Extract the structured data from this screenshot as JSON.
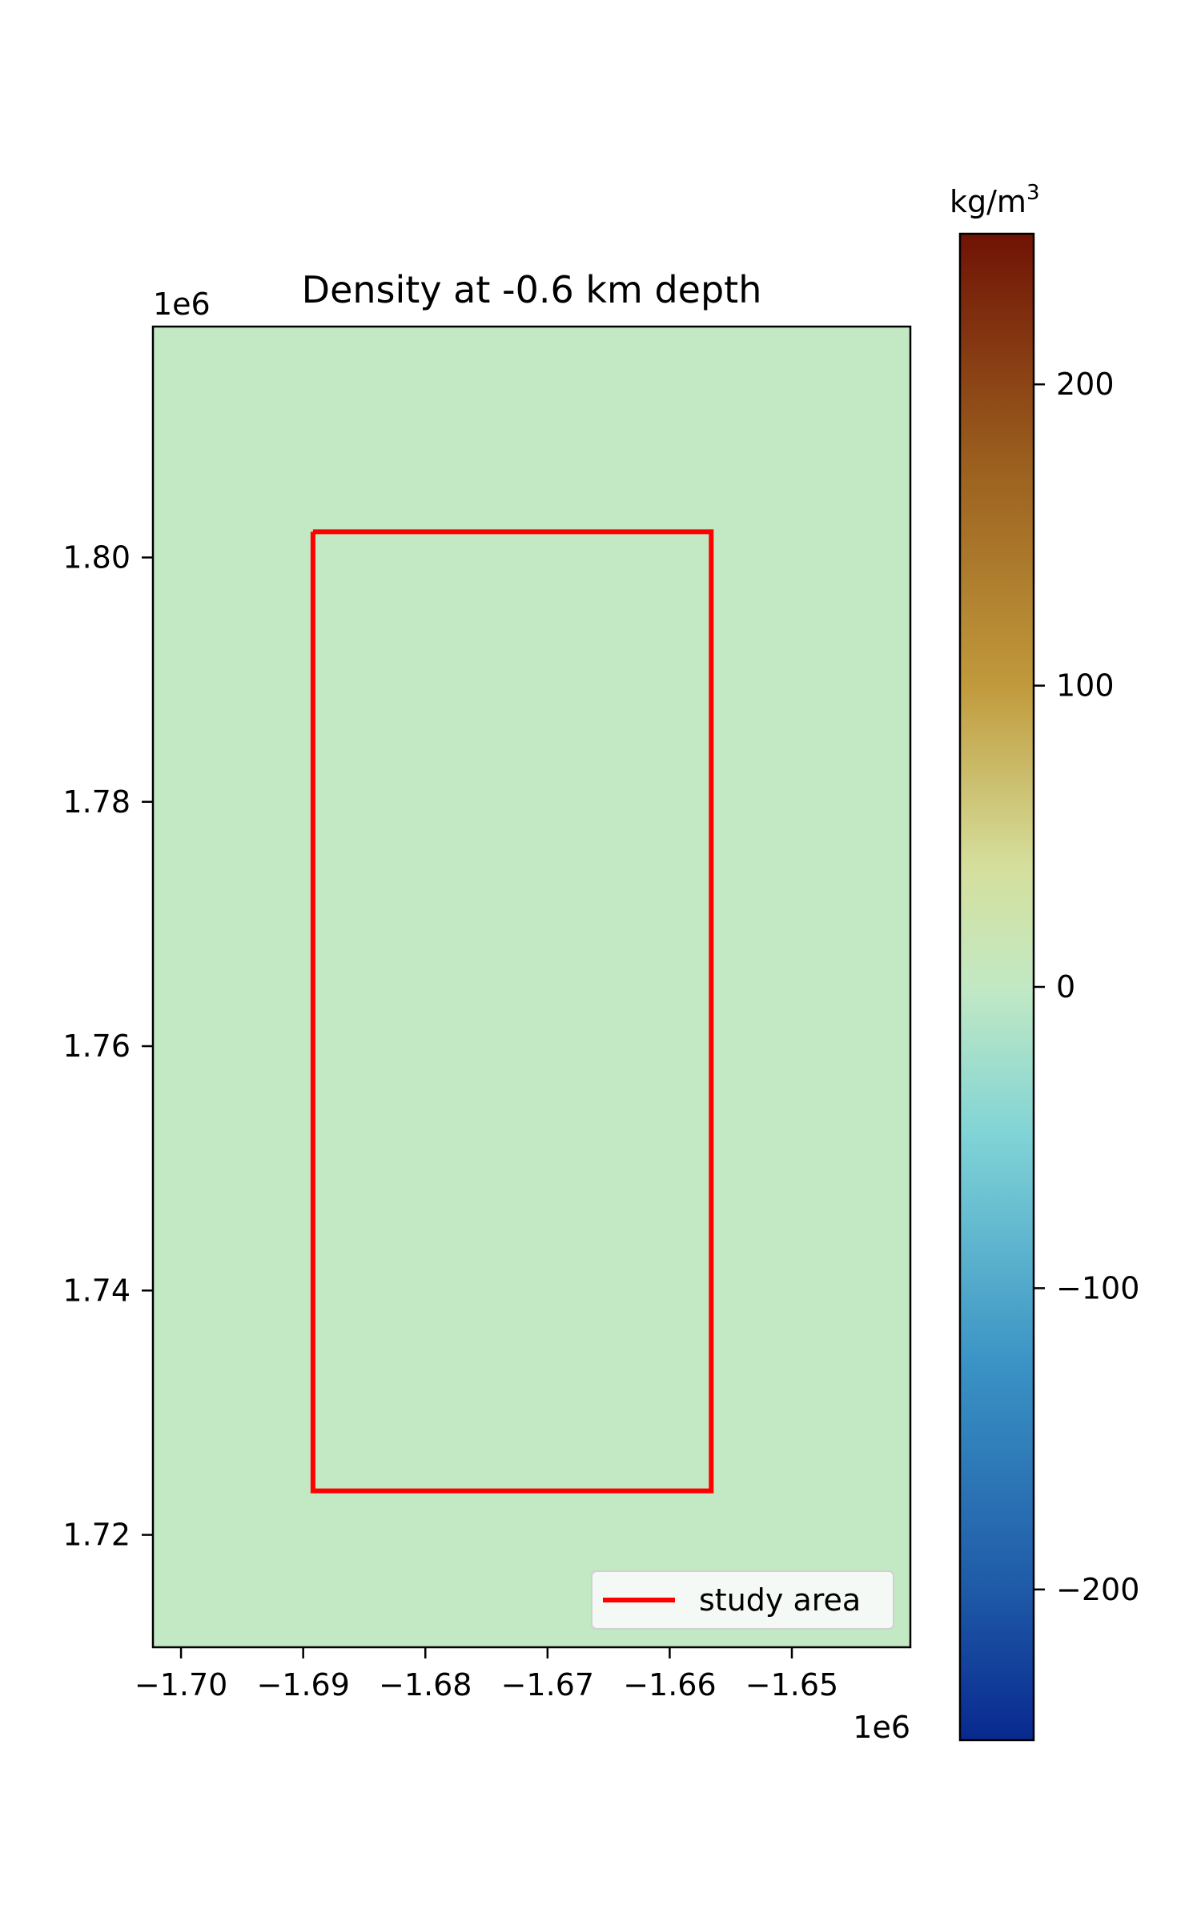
{
  "chart_data": [
    {
      "type": "heatmap",
      "title": "Density at -0.6 km depth",
      "xlabel": "",
      "ylabel": "",
      "x_offset_label": "1e6",
      "y_offset_label": "1e6",
      "xlim": [
        -1.7023,
        -1.6403
      ],
      "ylim": [
        1.7108,
        1.8189
      ],
      "x_ticks": [
        -1.7,
        -1.69,
        -1.68,
        -1.67,
        -1.66,
        -1.65
      ],
      "x_tick_labels": [
        "−1.70",
        "−1.69",
        "−1.68",
        "−1.67",
        "−1.66",
        "−1.65"
      ],
      "y_ticks": [
        1.72,
        1.74,
        1.76,
        1.78,
        1.8
      ],
      "y_tick_labels": [
        "1.72",
        "1.74",
        "1.76",
        "1.78",
        "1.80"
      ],
      "field_value": 0,
      "field_color": "#c2e9c4",
      "grid": false,
      "series": [
        {
          "name": "study area",
          "color": "#ff0000",
          "x": [
            -1.6892,
            -1.6566,
            -1.6566,
            -1.6892,
            -1.6892
          ],
          "y": [
            1.8021,
            1.8021,
            1.7236,
            1.7236,
            1.8021
          ]
        }
      ],
      "legend": {
        "position": "lower right",
        "entries": [
          "study area"
        ]
      }
    },
    {
      "type": "colorbar",
      "unit_base": "kg/m",
      "unit_exponent": "3",
      "range": [
        -250,
        250
      ],
      "ticks": [
        -200,
        -100,
        0,
        100,
        200
      ],
      "tick_labels": [
        "−200",
        "−100",
        "0",
        "100",
        "200"
      ],
      "colormap_stops": [
        {
          "value": -250,
          "color": "#08298f"
        },
        {
          "value": -200,
          "color": "#1f5aa8"
        },
        {
          "value": -125,
          "color": "#3a93c5"
        },
        {
          "value": -50,
          "color": "#7fd3d6"
        },
        {
          "value": 0,
          "color": "#c2e9c4"
        },
        {
          "value": 40,
          "color": "#d5df9c"
        },
        {
          "value": 100,
          "color": "#c19a3c"
        },
        {
          "value": 175,
          "color": "#9a5e1e"
        },
        {
          "value": 250,
          "color": "#701305"
        }
      ]
    }
  ]
}
